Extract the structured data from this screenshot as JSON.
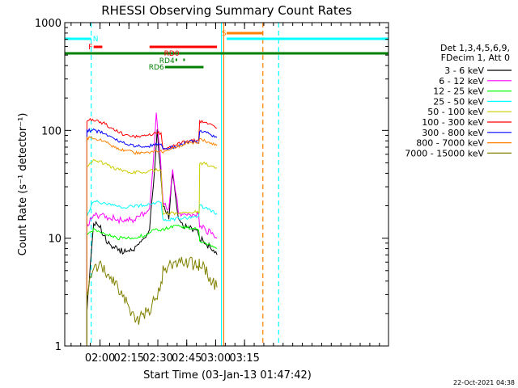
{
  "chart_data": {
    "type": "line",
    "title": "RHESSI Observing Summary Count Rates",
    "xlabel": "Start Time (03-Jan-13 01:47:42)",
    "ylabel": "Count Rate (s⁻¹ detector⁻¹)",
    "y_scale": "log",
    "ylim": [
      1,
      1000
    ],
    "xlim_minutes_after_start": [
      -6,
      162
    ],
    "x_ticks": [
      {
        "label": "02:00",
        "t": 12.3
      },
      {
        "label": "02:15",
        "t": 27.3
      },
      {
        "label": "02:30",
        "t": 42.3
      },
      {
        "label": "02:45",
        "t": 57.3
      },
      {
        "label": "03:00",
        "t": 72.3
      },
      {
        "label": "03:15",
        "t": 87.3
      }
    ],
    "y_ticks": [
      {
        "label": "1",
        "v": 1
      },
      {
        "label": "10",
        "v": 10
      },
      {
        "label": "100",
        "v": 100
      },
      {
        "label": "1000",
        "v": 1000
      }
    ],
    "legend_header": [
      "Det 1,3,4,5,6,9,",
      "FDecim 1, Att 0"
    ],
    "legend_position": "right",
    "timestamp": "22-Oct-2021 04:38",
    "series": [
      {
        "name": "3 - 6 keV",
        "color": "#000000",
        "points": [
          [
            5.5,
            2.2
          ],
          [
            9,
            14
          ],
          [
            12,
            13
          ],
          [
            15,
            10
          ],
          [
            18,
            8.5
          ],
          [
            21,
            8
          ],
          [
            24,
            7.5
          ],
          [
            27,
            7.5
          ],
          [
            30,
            8
          ],
          [
            33,
            9
          ],
          [
            36,
            10
          ],
          [
            38,
            12
          ],
          [
            40,
            30
          ],
          [
            42,
            100
          ],
          [
            43.5,
            45
          ],
          [
            45,
            20
          ],
          [
            48,
            16
          ],
          [
            50,
            40
          ],
          [
            51.5,
            25
          ],
          [
            53,
            15
          ],
          [
            55,
            13
          ],
          [
            58,
            13
          ],
          [
            61,
            12
          ],
          [
            63.5,
            11
          ],
          [
            64,
            10
          ],
          [
            67,
            9
          ],
          [
            70,
            8
          ],
          [
            73,
            7
          ]
        ]
      },
      {
        "name": "6 - 12 keV",
        "color": "#ff00ff",
        "points": [
          [
            5.5,
            13
          ],
          [
            9,
            17
          ],
          [
            12,
            16
          ],
          [
            15,
            16
          ],
          [
            18,
            15.5
          ],
          [
            21,
            15
          ],
          [
            24,
            14.5
          ],
          [
            27,
            14.5
          ],
          [
            30,
            15
          ],
          [
            33,
            16
          ],
          [
            36,
            17
          ],
          [
            38,
            20
          ],
          [
            40,
            50
          ],
          [
            41.5,
            155
          ],
          [
            43.5,
            60
          ],
          [
            45,
            22
          ],
          [
            48,
            18
          ],
          [
            50,
            45
          ],
          [
            51.5,
            28
          ],
          [
            53,
            17
          ],
          [
            55,
            16
          ],
          [
            58,
            16
          ],
          [
            61,
            16.5
          ],
          [
            63.5,
            17
          ],
          [
            64,
            13
          ],
          [
            67,
            12
          ],
          [
            70,
            11
          ],
          [
            73,
            10
          ]
        ]
      },
      {
        "name": "12 - 25 keV",
        "color": "#00ff00",
        "points": [
          [
            5.5,
            10.5
          ],
          [
            9,
            12
          ],
          [
            12,
            11.5
          ],
          [
            15,
            11
          ],
          [
            18,
            10.5
          ],
          [
            21,
            10
          ],
          [
            24,
            10
          ],
          [
            27,
            10
          ],
          [
            30,
            10
          ],
          [
            33,
            10.5
          ],
          [
            36,
            10.5
          ],
          [
            38,
            11
          ],
          [
            40,
            12
          ],
          [
            42,
            12
          ],
          [
            45,
            12
          ],
          [
            48,
            12.5
          ],
          [
            51,
            13
          ],
          [
            53,
            13
          ],
          [
            55,
            12.5
          ],
          [
            58,
            12.5
          ],
          [
            61,
            12.5
          ],
          [
            63.5,
            12
          ],
          [
            64,
            9.5
          ],
          [
            67,
            9
          ],
          [
            70,
            8.5
          ],
          [
            73,
            8
          ]
        ]
      },
      {
        "name": "25 - 50 keV",
        "color": "#00ffff",
        "points": [
          [
            5.5,
            16
          ],
          [
            9,
            22
          ],
          [
            12,
            21.5
          ],
          [
            15,
            21
          ],
          [
            18,
            20.5
          ],
          [
            21,
            20
          ],
          [
            24,
            19.5
          ],
          [
            27,
            19.5
          ],
          [
            30,
            20
          ],
          [
            33,
            20
          ],
          [
            36,
            20.5
          ],
          [
            38,
            21
          ],
          [
            40,
            21
          ],
          [
            42,
            21.5
          ],
          [
            44,
            21
          ],
          [
            45,
            14.5
          ],
          [
            48,
            15
          ],
          [
            51,
            15
          ],
          [
            54,
            15.5
          ],
          [
            57,
            15.5
          ],
          [
            60,
            15.5
          ],
          [
            63.5,
            15.5
          ],
          [
            64,
            20
          ],
          [
            67,
            19
          ],
          [
            70,
            18
          ],
          [
            73,
            17
          ]
        ]
      },
      {
        "name": "50 - 100 keV",
        "color": "#cccc00",
        "points": [
          [
            5.5,
            45
          ],
          [
            9,
            52
          ],
          [
            12,
            51
          ],
          [
            15,
            49
          ],
          [
            18,
            46
          ],
          [
            21,
            44
          ],
          [
            24,
            42
          ],
          [
            27,
            41
          ],
          [
            30,
            41
          ],
          [
            33,
            41
          ],
          [
            36,
            41
          ],
          [
            38,
            42
          ],
          [
            40,
            43
          ],
          [
            42,
            43
          ],
          [
            44,
            43
          ],
          [
            45,
            17
          ],
          [
            48,
            17
          ],
          [
            51,
            17
          ],
          [
            54,
            17.5
          ],
          [
            57,
            17.5
          ],
          [
            60,
            17.5
          ],
          [
            63.5,
            17.5
          ],
          [
            64,
            50
          ],
          [
            67,
            49
          ],
          [
            70,
            47
          ],
          [
            73,
            45
          ]
        ]
      },
      {
        "name": "100 - 300 keV",
        "color": "#ff0000",
        "points": [
          [
            5.5,
            125
          ],
          [
            9,
            125
          ],
          [
            12,
            120
          ],
          [
            15,
            115
          ],
          [
            18,
            106
          ],
          [
            21,
            99
          ],
          [
            24,
            93
          ],
          [
            27,
            90
          ],
          [
            30,
            88
          ],
          [
            33,
            88
          ],
          [
            36,
            88
          ],
          [
            38,
            90
          ],
          [
            40,
            93
          ],
          [
            42,
            94
          ],
          [
            44,
            95
          ],
          [
            45,
            68
          ],
          [
            48,
            70
          ],
          [
            51,
            72
          ],
          [
            54,
            76
          ],
          [
            57,
            80
          ],
          [
            60,
            81
          ],
          [
            63.5,
            80
          ],
          [
            64,
            120
          ],
          [
            67,
            118
          ],
          [
            70,
            112
          ],
          [
            73,
            105
          ]
        ]
      },
      {
        "name": "300 - 800 keV",
        "color": "#0000ff",
        "points": [
          [
            5.5,
            100
          ],
          [
            9,
            100
          ],
          [
            12,
            97
          ],
          [
            15,
            92
          ],
          [
            18,
            86
          ],
          [
            21,
            81
          ],
          [
            24,
            77
          ],
          [
            27,
            74
          ],
          [
            30,
            72
          ],
          [
            33,
            71
          ],
          [
            36,
            71
          ],
          [
            38,
            72
          ],
          [
            40,
            74
          ],
          [
            42,
            75
          ],
          [
            44,
            76
          ],
          [
            45,
            66
          ],
          [
            48,
            68
          ],
          [
            51,
            70
          ],
          [
            54,
            74
          ],
          [
            57,
            78
          ],
          [
            60,
            79
          ],
          [
            63.5,
            77
          ],
          [
            64,
            98
          ],
          [
            67,
            96
          ],
          [
            70,
            91
          ],
          [
            73,
            86
          ]
        ]
      },
      {
        "name": "800 - 7000 keV",
        "color": "#ff8000",
        "points": [
          [
            5.5,
            85
          ],
          [
            9,
            85
          ],
          [
            12,
            82
          ],
          [
            15,
            78
          ],
          [
            18,
            73
          ],
          [
            21,
            69
          ],
          [
            24,
            66
          ],
          [
            27,
            64
          ],
          [
            30,
            62
          ],
          [
            33,
            61
          ],
          [
            36,
            61
          ],
          [
            38,
            62
          ],
          [
            40,
            63
          ],
          [
            42,
            64
          ],
          [
            44,
            65
          ],
          [
            45,
            63
          ],
          [
            48,
            66
          ],
          [
            51,
            69
          ],
          [
            54,
            72
          ],
          [
            57,
            76
          ],
          [
            60,
            77
          ],
          [
            63.5,
            75
          ],
          [
            64,
            82
          ],
          [
            67,
            80
          ],
          [
            70,
            76
          ],
          [
            73,
            72
          ]
        ]
      },
      {
        "name": "7000 - 15000 keV",
        "color": "#808000",
        "points": [
          [
            5.5,
            3
          ],
          [
            9,
            5
          ],
          [
            12,
            5.5
          ],
          [
            15,
            5
          ],
          [
            18,
            4.3
          ],
          [
            21,
            3.5
          ],
          [
            24,
            3
          ],
          [
            27,
            2.3
          ],
          [
            30,
            1.8
          ],
          [
            33,
            1.8
          ],
          [
            36,
            2
          ],
          [
            38,
            2.2
          ],
          [
            40,
            2.6
          ],
          [
            42,
            3
          ],
          [
            44,
            3.5
          ],
          [
            45,
            5
          ],
          [
            48,
            5.5
          ],
          [
            51,
            6
          ],
          [
            54,
            6
          ],
          [
            57,
            6
          ],
          [
            60,
            5.8
          ],
          [
            63.5,
            5.5
          ],
          [
            64,
            6
          ],
          [
            67,
            5
          ],
          [
            70,
            4
          ],
          [
            73,
            3.5
          ]
        ]
      }
    ],
    "flag_bars": [
      {
        "label": "N",
        "color": "#00ffff",
        "row": "top",
        "segments": [
          [
            -6,
            7.7
          ],
          [
            78,
            162
          ]
        ]
      },
      {
        "label": "F",
        "color": "#ff0000",
        "row": "mid",
        "segments": [
          [
            9,
            13.5
          ]
        ]
      },
      {
        "label": "S",
        "color": "#ff8000",
        "row": "top2",
        "segments": [
          [
            78,
            97
          ]
        ]
      },
      {
        "label": "RD0",
        "color": "#ff0000",
        "row": "mid",
        "segments": [
          [
            38,
            73
          ]
        ]
      },
      {
        "label": "",
        "color": "#008000",
        "row": "main",
        "segments": [
          [
            -6,
            162
          ]
        ]
      },
      {
        "label": "RD4",
        "color": "#008000",
        "row": "dots",
        "segments": [
          [
            51.5,
            52.2
          ],
          [
            55.5,
            56.2
          ]
        ]
      },
      {
        "label": "RD6",
        "color": "#008000",
        "row": "low",
        "segments": [
          [
            46,
            66
          ]
        ]
      }
    ],
    "vertical_markers": [
      {
        "t": 7.7,
        "color": "#00ffff",
        "style": "dashed"
      },
      {
        "t": 75.3,
        "color": "#00ffff",
        "style": "solid"
      },
      {
        "t": 76.5,
        "color": "#ff8000",
        "style": "solid"
      },
      {
        "t": 96.8,
        "color": "#ff8000",
        "style": "dashed"
      },
      {
        "t": 105,
        "color": "#00ffff",
        "style": "dashed"
      }
    ]
  }
}
